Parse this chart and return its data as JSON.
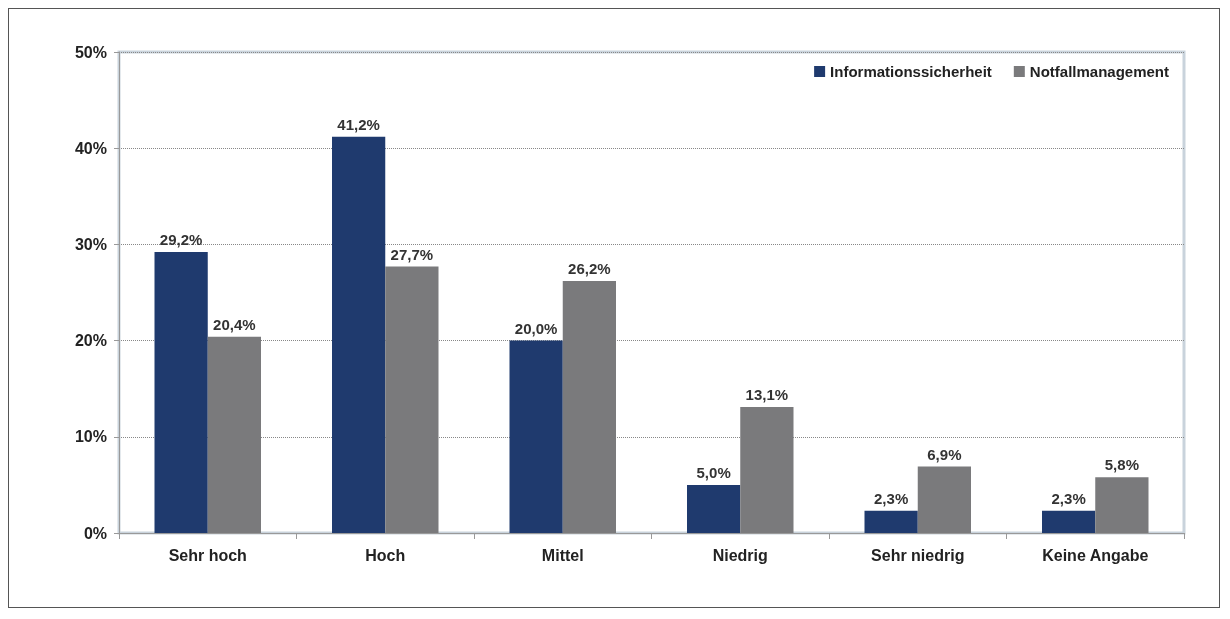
{
  "chart_data": {
    "type": "bar",
    "categories": [
      "Sehr hoch",
      "Hoch",
      "Mittel",
      "Niedrig",
      "Sehr niedrig",
      "Keine Angabe"
    ],
    "series": [
      {
        "name": "Informationssicherheit",
        "color": "#1f3a6e",
        "values": [
          29.2,
          41.2,
          20.0,
          5.0,
          2.3,
          2.3
        ],
        "value_labels": [
          "29,2%",
          "41,2%",
          "20,0%",
          "5,0%",
          "2,3%",
          "2,3%"
        ]
      },
      {
        "name": "Notfallmanagement",
        "color": "#7a7a7c",
        "values": [
          20.4,
          27.7,
          26.2,
          13.1,
          6.9,
          5.8
        ],
        "value_labels": [
          "20,4%",
          "27,7%",
          "26,2%",
          "13,1%",
          "6,9%",
          "5,8%"
        ]
      }
    ],
    "ylim": [
      0,
      50
    ],
    "yticks": [
      {
        "value": 0,
        "label": "0%"
      },
      {
        "value": 10,
        "label": "10%"
      },
      {
        "value": 20,
        "label": "20%"
      },
      {
        "value": 30,
        "label": "30%"
      },
      {
        "value": 40,
        "label": "40%"
      },
      {
        "value": 50,
        "label": "50%"
      }
    ],
    "grid": "y",
    "legend": "top right"
  }
}
